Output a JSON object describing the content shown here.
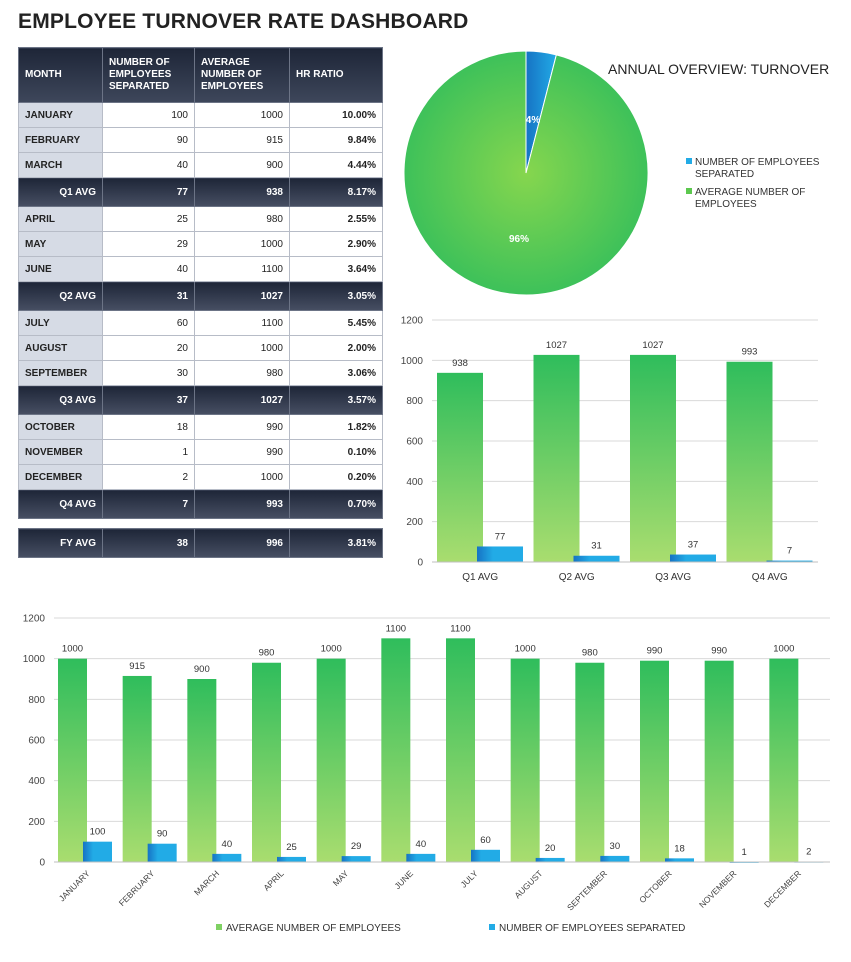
{
  "title": "EMPLOYEE TURNOVER RATE DASHBOARD",
  "table": {
    "headers": [
      "MONTH",
      "NUMBER OF EMPLOYEES SEPARATED",
      "AVERAGE NUMBER OF EMPLOYEES",
      "HR RATIO"
    ],
    "quarters": [
      {
        "months": [
          {
            "name": "JANUARY",
            "separated": "100",
            "average": "1000",
            "ratio": "10.00%"
          },
          {
            "name": "FEBRUARY",
            "separated": "90",
            "average": "915",
            "ratio": "9.84%"
          },
          {
            "name": "MARCH",
            "separated": "40",
            "average": "900",
            "ratio": "4.44%"
          }
        ],
        "avg": {
          "label": "Q1 AVG",
          "separated": "77",
          "average": "938",
          "ratio": "8.17%"
        }
      },
      {
        "months": [
          {
            "name": "APRIL",
            "separated": "25",
            "average": "980",
            "ratio": "2.55%"
          },
          {
            "name": "MAY",
            "separated": "29",
            "average": "1000",
            "ratio": "2.90%"
          },
          {
            "name": "JUNE",
            "separated": "40",
            "average": "1100",
            "ratio": "3.64%"
          }
        ],
        "avg": {
          "label": "Q2 AVG",
          "separated": "31",
          "average": "1027",
          "ratio": "3.05%"
        }
      },
      {
        "months": [
          {
            "name": "JULY",
            "separated": "60",
            "average": "1100",
            "ratio": "5.45%"
          },
          {
            "name": "AUGUST",
            "separated": "20",
            "average": "1000",
            "ratio": "2.00%"
          },
          {
            "name": "SEPTEMBER",
            "separated": "30",
            "average": "980",
            "ratio": "3.06%"
          }
        ],
        "avg": {
          "label": "Q3 AVG",
          "separated": "37",
          "average": "1027",
          "ratio": "3.57%"
        }
      },
      {
        "months": [
          {
            "name": "OCTOBER",
            "separated": "18",
            "average": "990",
            "ratio": "1.82%"
          },
          {
            "name": "NOVEMBER",
            "separated": "1",
            "average": "990",
            "ratio": "0.10%"
          },
          {
            "name": "DECEMBER",
            "separated": "2",
            "average": "1000",
            "ratio": "0.20%"
          }
        ],
        "avg": {
          "label": "Q4 AVG",
          "separated": "7",
          "average": "993",
          "ratio": "0.70%"
        }
      }
    ],
    "fy": {
      "label": "FY AVG",
      "separated": "38",
      "average": "996",
      "ratio": "3.81%"
    }
  },
  "colors": {
    "green_top": "#2fbd5c",
    "green_bottom": "#a9dd6f",
    "blue": "#22abe6",
    "blue_dark": "#1673c4",
    "navy": "#1e2638"
  },
  "chart_data": [
    {
      "type": "pie",
      "title": "ANNUAL OVERVIEW: TURNOVER",
      "slices": [
        {
          "label": "NUMBER OF EMPLOYEES SEPARATED",
          "value": 4,
          "display": "4%",
          "color": "#1e90df"
        },
        {
          "label": "AVERAGE NUMBER OF EMPLOYEES",
          "value": 96,
          "display": "96%",
          "color": "#5cc84e"
        }
      ]
    },
    {
      "type": "bar",
      "title": "",
      "categories": [
        "Q1 AVG",
        "Q2 AVG",
        "Q3 AVG",
        "Q4 AVG"
      ],
      "series": [
        {
          "name": "AVERAGE NUMBER OF EMPLOYEES",
          "values": [
            938,
            1027,
            1027,
            993
          ]
        },
        {
          "name": "NUMBER OF EMPLOYEES SEPARATED",
          "values": [
            77,
            31,
            37,
            7
          ]
        }
      ],
      "ylim": [
        0,
        1200
      ],
      "yticks": [
        0,
        200,
        400,
        600,
        800,
        1000,
        1200
      ],
      "grid": true
    },
    {
      "type": "bar",
      "title": "",
      "categories": [
        "JANUARY",
        "FEBRUARY",
        "MARCH",
        "APRIL",
        "MAY",
        "JUNE",
        "JULY",
        "AUGUST",
        "SEPTEMBER",
        "OCTOBER",
        "NOVEMBER",
        "DECEMBER"
      ],
      "series": [
        {
          "name": "AVERAGE NUMBER OF EMPLOYEES",
          "values": [
            1000,
            915,
            900,
            980,
            1000,
            1100,
            1100,
            1000,
            980,
            990,
            990,
            1000
          ]
        },
        {
          "name": "NUMBER OF EMPLOYEES SEPARATED",
          "values": [
            100,
            90,
            40,
            25,
            29,
            40,
            60,
            20,
            30,
            18,
            1,
            2
          ]
        }
      ],
      "ylim": [
        0,
        1200
      ],
      "yticks": [
        0,
        200,
        400,
        600,
        800,
        1000,
        1200
      ],
      "grid": true,
      "legend": [
        "AVERAGE NUMBER OF EMPLOYEES",
        "NUMBER OF EMPLOYEES SEPARATED"
      ]
    }
  ]
}
